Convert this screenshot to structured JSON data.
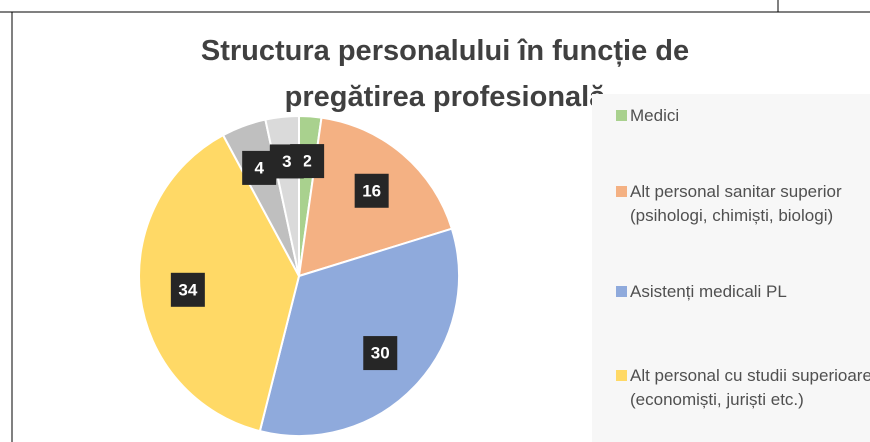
{
  "chart_data": {
    "type": "pie",
    "title": "Structura personalului în funcție de pregătirea profesională",
    "categories": [
      "Medici",
      "Alt personal sanitar superior (psihologi, chimiști, biologi)",
      "Asistenți medicali PL",
      "Alt personal cu studii superioare (economiști, juriști etc.)",
      null,
      null
    ],
    "values": [
      2,
      16,
      30,
      34,
      4,
      3
    ],
    "colors": [
      "#a9d18e",
      "#f4b183",
      "#8faadc",
      "#ffd966",
      "#bfbfbf",
      "#dadada"
    ]
  }
}
